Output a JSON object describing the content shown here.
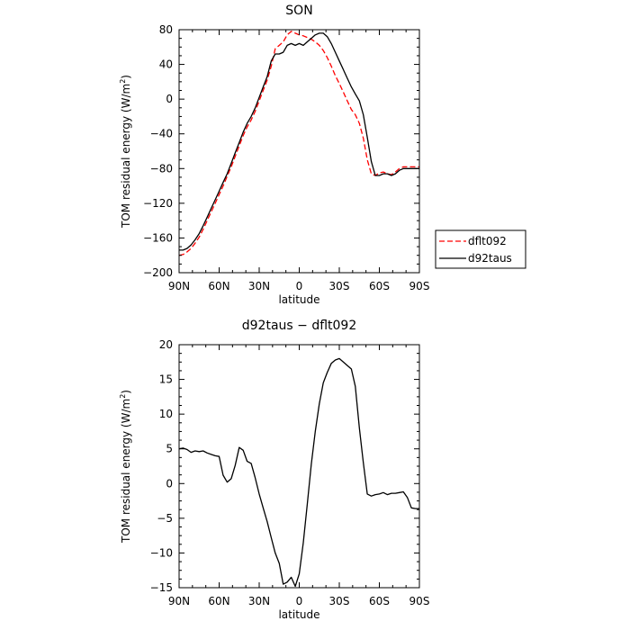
{
  "chart_data": [
    {
      "type": "line",
      "title": "SON",
      "xlabel": "latitude",
      "ylabel": "TOM residual energy (W/m²)",
      "ylabel_prefix": "TOM residual energy (W/m",
      "ylabel_sup": "2",
      "ylabel_suffix": ")",
      "xlim": [
        90,
        -90
      ],
      "ylim": [
        -200,
        80
      ],
      "x_ticks": [
        90,
        60,
        30,
        0,
        -30,
        -60,
        -90
      ],
      "x_tick_labels": [
        "90N",
        "60N",
        "30N",
        "0",
        "30S",
        "60S",
        "90S"
      ],
      "y_ticks": [
        -200,
        -160,
        -120,
        -80,
        -40,
        0,
        40,
        80
      ],
      "y_tick_labels": [
        "−200",
        "−160",
        "−120",
        "−80",
        "−40",
        "0",
        "40",
        "80"
      ],
      "legend_placement": "right",
      "series": [
        {
          "name": "dflt092",
          "color": "#ff0000",
          "dash": "dashed",
          "x": [
            90,
            87,
            84,
            81,
            78,
            75,
            72,
            69,
            66,
            63,
            60,
            57,
            54,
            51,
            48,
            45,
            42,
            39,
            36,
            33,
            30,
            27,
            24,
            21,
            18,
            15,
            12,
            9,
            6,
            3,
            0,
            -3,
            -6,
            -9,
            -12,
            -15,
            -18,
            -21,
            -24,
            -27,
            -30,
            -33,
            -36,
            -39,
            -42,
            -45,
            -48,
            -51,
            -54,
            -57,
            -60,
            -63,
            -66,
            -69,
            -72,
            -75,
            -78,
            -81,
            -84,
            -87,
            -90
          ],
          "y": [
            -180,
            -179,
            -176,
            -172,
            -166,
            -159,
            -150,
            -140,
            -130,
            -120,
            -110,
            -100,
            -89,
            -78,
            -66,
            -54,
            -42,
            -32,
            -24,
            -14,
            -2,
            10,
            22,
            38,
            58,
            62,
            66,
            74,
            78,
            76,
            74,
            73,
            71,
            69,
            66,
            62,
            56,
            48,
            38,
            27,
            18,
            8,
            -2,
            -12,
            -18,
            -28,
            -45,
            -70,
            -86,
            -88,
            -85,
            -84,
            -86,
            -87,
            -84,
            -80,
            -78,
            -78,
            -78,
            -78,
            -78
          ]
        },
        {
          "name": "d92taus",
          "color": "#000000",
          "dash": "solid",
          "x": [
            90,
            87,
            84,
            81,
            78,
            75,
            72,
            69,
            66,
            63,
            60,
            57,
            54,
            51,
            48,
            45,
            42,
            39,
            36,
            33,
            30,
            27,
            24,
            21,
            18,
            15,
            12,
            9,
            6,
            3,
            0,
            -3,
            -6,
            -9,
            -12,
            -15,
            -18,
            -21,
            -24,
            -27,
            -30,
            -33,
            -36,
            -39,
            -42,
            -45,
            -48,
            -51,
            -54,
            -57,
            -60,
            -63,
            -66,
            -69,
            -72,
            -75,
            -78,
            -81,
            -84,
            -87,
            -90
          ],
          "y": [
            -174,
            -174,
            -172,
            -168,
            -162,
            -155,
            -146,
            -136,
            -126,
            -116,
            -106,
            -96,
            -86,
            -74,
            -62,
            -50,
            -38,
            -28,
            -20,
            -10,
            2,
            14,
            26,
            44,
            52,
            52,
            54,
            62,
            64,
            62,
            64,
            62,
            66,
            70,
            74,
            76,
            76,
            72,
            64,
            54,
            44,
            34,
            24,
            14,
            6,
            -2,
            -18,
            -44,
            -72,
            -88,
            -88,
            -86,
            -86,
            -88,
            -86,
            -82,
            -80,
            -80,
            -80,
            -80,
            -80
          ]
        }
      ]
    },
    {
      "type": "line",
      "title": "d92taus − dflt092",
      "xlabel": "latitude",
      "ylabel": "TOM residual energy (W/m²)",
      "ylabel_prefix": "TOM residual energy (W/m",
      "ylabel_sup": "2",
      "ylabel_suffix": ")",
      "xlim": [
        90,
        -90
      ],
      "ylim": [
        -15,
        20
      ],
      "x_ticks": [
        90,
        60,
        30,
        0,
        -30,
        -60,
        -90
      ],
      "x_tick_labels": [
        "90N",
        "60N",
        "30N",
        "0",
        "30S",
        "60S",
        "90S"
      ],
      "y_ticks": [
        -15,
        -10,
        -5,
        0,
        5,
        10,
        15,
        20
      ],
      "y_tick_labels": [
        "−15",
        "−10",
        "−5",
        "0",
        "5",
        "10",
        "15",
        "20"
      ],
      "series": [
        {
          "color": "#000000",
          "dash": "solid",
          "x": [
            90,
            87,
            84,
            81,
            78,
            75,
            72,
            69,
            66,
            63,
            60,
            57,
            54,
            51,
            48,
            45,
            42,
            39,
            36,
            33,
            30,
            27,
            24,
            21,
            18,
            15,
            12,
            9,
            6,
            3,
            0,
            -3,
            -6,
            -9,
            -12,
            -15,
            -18,
            -21,
            -24,
            -27,
            -30,
            -33,
            -36,
            -39,
            -42,
            -45,
            -48,
            -51,
            -54,
            -57,
            -60,
            -63,
            -66,
            -69,
            -72,
            -75,
            -78,
            -81,
            -84,
            -87,
            -90
          ],
          "y": [
            5.0,
            5.1,
            4.9,
            4.5,
            4.7,
            4.6,
            4.7,
            4.4,
            4.2,
            4.0,
            3.9,
            1.2,
            0.2,
            0.7,
            2.6,
            5.2,
            4.8,
            3.2,
            2.9,
            0.8,
            -1.5,
            -3.5,
            -5.5,
            -7.8,
            -10.0,
            -11.5,
            -14.5,
            -14.2,
            -13.5,
            -14.8,
            -13.0,
            -8.5,
            -3.0,
            2.8,
            7.5,
            11.5,
            14.5,
            16.0,
            17.3,
            17.8,
            18.0,
            17.5,
            17.0,
            16.5,
            14.0,
            8.0,
            3.0,
            -1.5,
            -1.8,
            -1.6,
            -1.5,
            -1.3,
            -1.6,
            -1.4,
            -1.4,
            -1.3,
            -1.2,
            -2.0,
            -3.5,
            -3.6,
            -3.6
          ]
        }
      ]
    }
  ]
}
